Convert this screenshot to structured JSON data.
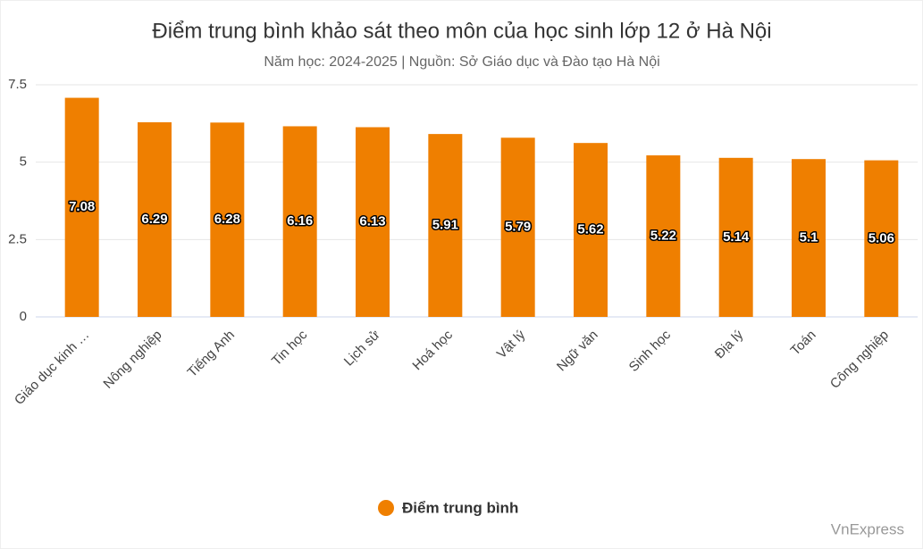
{
  "chart_data": {
    "type": "bar",
    "title": "Điểm trung bình khảo sát theo môn của học sinh lớp 12 ở Hà Nội",
    "subtitle": "Năm học: 2024-2025 | Nguồn: Sở Giáo dục và Đào tạo Hà Nội",
    "categories": [
      "Giáo dục kinh …",
      "Nông nghiệp",
      "Tiếng Anh",
      "Tin học",
      "Lịch sử",
      "Hoá học",
      "Vật lý",
      "Ngữ văn",
      "Sinh học",
      "Địa lý",
      "Toán",
      "Công nghiệp"
    ],
    "series": [
      {
        "name": "Điểm trung bình",
        "color": "#ef7f00",
        "values": [
          7.08,
          6.29,
          6.28,
          6.16,
          6.13,
          5.91,
          5.79,
          5.62,
          5.22,
          5.14,
          5.1,
          5.06
        ]
      }
    ],
    "ylim": [
      0,
      7.5
    ],
    "yticks": [
      0,
      2.5,
      5,
      7.5
    ],
    "grid": true,
    "credit": "VnExpress"
  }
}
